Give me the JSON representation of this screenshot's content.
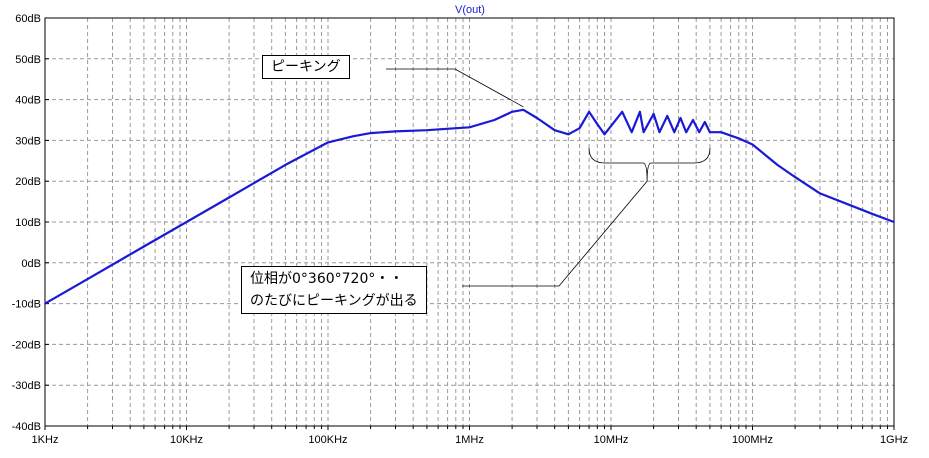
{
  "chart_data": {
    "type": "line",
    "title": "V(out)",
    "x_scale": "log",
    "x_range_hz": [
      1000,
      1000000000
    ],
    "x_ticks": [
      {
        "value": 1000,
        "label": "1KHz"
      },
      {
        "value": 10000,
        "label": "10KHz"
      },
      {
        "value": 100000,
        "label": "100KHz"
      },
      {
        "value": 1000000,
        "label": "1MHz"
      },
      {
        "value": 10000000,
        "label": "10MHz"
      },
      {
        "value": 100000000,
        "label": "100MHz"
      },
      {
        "value": 1000000000,
        "label": "1GHz"
      }
    ],
    "y_range_db": [
      -40,
      60
    ],
    "y_ticks": [
      {
        "value": 60,
        "label": "60dB"
      },
      {
        "value": 50,
        "label": "50dB"
      },
      {
        "value": 40,
        "label": "40dB"
      },
      {
        "value": 30,
        "label": "30dB"
      },
      {
        "value": 20,
        "label": "20dB"
      },
      {
        "value": 10,
        "label": "10dB"
      },
      {
        "value": 0,
        "label": "0dB"
      },
      {
        "value": -10,
        "label": "-10dB"
      },
      {
        "value": -20,
        "label": "-20dB"
      },
      {
        "value": -30,
        "label": "-30dB"
      },
      {
        "value": -40,
        "label": "-40dB"
      }
    ],
    "grid": true,
    "series": [
      {
        "name": "V(out)",
        "color": "#1a1ad6",
        "points": [
          [
            1000,
            -10
          ],
          [
            2000,
            -4
          ],
          [
            5000,
            4
          ],
          [
            10000,
            10
          ],
          [
            20000,
            16
          ],
          [
            50000,
            24
          ],
          [
            100000,
            29.5
          ],
          [
            150000,
            31
          ],
          [
            200000,
            31.8
          ],
          [
            300000,
            32.2
          ],
          [
            500000,
            32.5
          ],
          [
            1000000,
            33.2
          ],
          [
            1500000,
            35
          ],
          [
            2000000,
            37
          ],
          [
            2400000,
            37.5
          ],
          [
            3000000,
            35.5
          ],
          [
            4000000,
            32.5
          ],
          [
            5000000,
            31.5
          ],
          [
            6000000,
            33
          ],
          [
            7000000,
            37
          ],
          [
            8000000,
            34
          ],
          [
            9000000,
            31.5
          ],
          [
            12000000,
            37
          ],
          [
            14000000,
            32
          ],
          [
            16000000,
            37
          ],
          [
            17000000,
            32
          ],
          [
            20000000,
            36.5
          ],
          [
            22000000,
            32
          ],
          [
            25000000,
            36
          ],
          [
            28000000,
            32
          ],
          [
            31000000,
            35.5
          ],
          [
            34000000,
            32
          ],
          [
            38000000,
            35
          ],
          [
            42000000,
            32
          ],
          [
            46000000,
            34.5
          ],
          [
            50000000,
            32
          ],
          [
            60000000,
            32
          ],
          [
            80000000,
            30.5
          ],
          [
            100000000,
            29
          ],
          [
            150000000,
            24
          ],
          [
            200000000,
            21
          ],
          [
            300000000,
            17
          ],
          [
            500000000,
            14
          ],
          [
            700000000,
            12
          ],
          [
            1000000000,
            10
          ]
        ]
      }
    ],
    "annotations": [
      {
        "text": "ピーキング",
        "target_hz": 2400000,
        "target_db": 37.5
      },
      {
        "lines": [
          "位相が0°360°720°・・",
          "のたびにピーキングが出る"
        ],
        "target_hz": 18000000,
        "target_db": 20
      }
    ]
  }
}
